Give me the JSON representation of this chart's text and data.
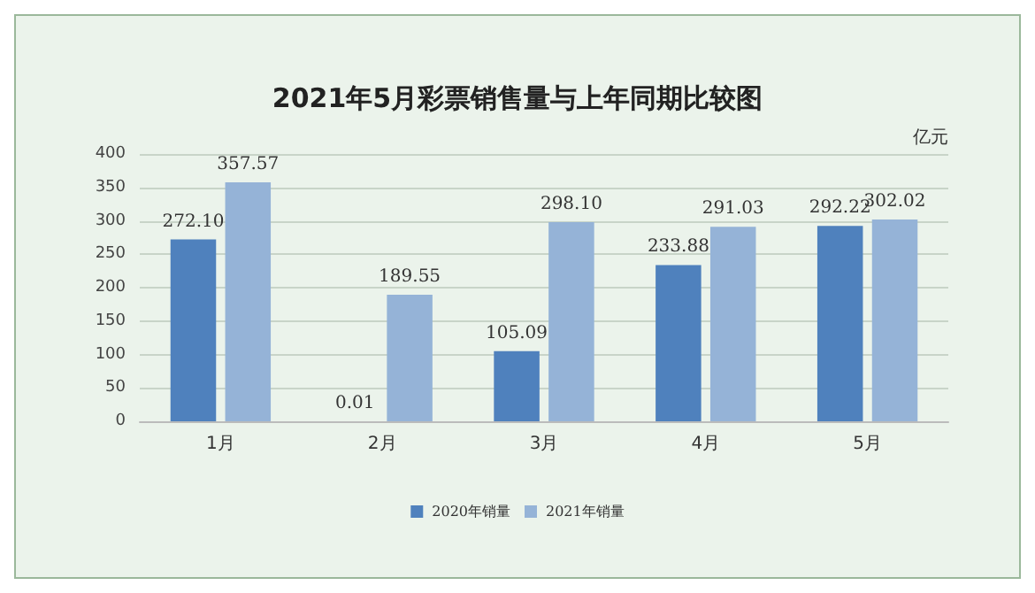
{
  "chart_data": {
    "type": "bar",
    "title": "2021年5月彩票销售量与上年同期比较图",
    "ylabel": "亿元",
    "categories": [
      "1月",
      "2月",
      "3月",
      "4月",
      "5月"
    ],
    "series": [
      {
        "name": "2020年销量",
        "color": "#4f81bd",
        "values": [
          272.1,
          0.01,
          105.09,
          233.88,
          292.22
        ],
        "value_labels": [
          "272.10",
          "0.01",
          "105.09",
          "233.88",
          "292.22"
        ]
      },
      {
        "name": "2021年销量",
        "color": "#95b3d7",
        "values": [
          357.57,
          189.55,
          298.1,
          291.03,
          302.02
        ],
        "value_labels": [
          "357.57",
          "189.55",
          "298.10",
          "291.03",
          "302.02"
        ]
      }
    ],
    "ylim": [
      0,
      400
    ],
    "yticks": [
      0,
      50,
      100,
      150,
      200,
      250,
      300,
      350,
      400
    ],
    "grid": "y",
    "legend": "bottom"
  }
}
